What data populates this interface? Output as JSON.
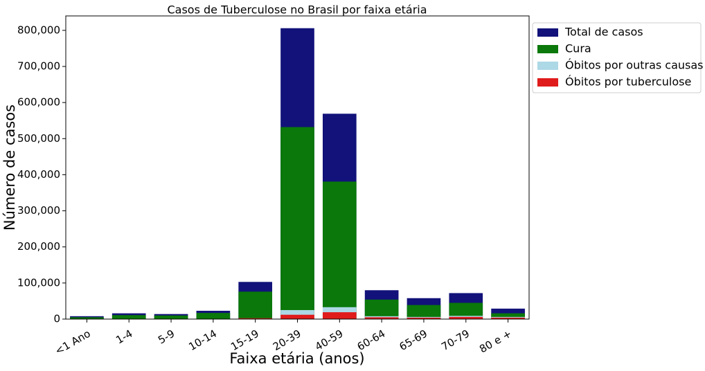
{
  "chart_data": {
    "type": "bar",
    "title": "Casos de Tuberculose no Brasil por faixa etária",
    "xlabel": "Faixa etária (anos)",
    "ylabel": "Número de casos",
    "categories": [
      "<1 Ano",
      "1-4",
      "5-9",
      "10-14",
      "15-19",
      "20-39",
      "40-59",
      "60-64",
      "65-69",
      "70-79",
      "80 e +"
    ],
    "series": [
      {
        "name": "Total de casos",
        "color": "#12127a",
        "values": [
          8000,
          16000,
          14000,
          23000,
          103000,
          806000,
          569000,
          80000,
          58000,
          72000,
          29000
        ]
      },
      {
        "name": "Cura",
        "color": "#0a780a",
        "values": [
          5000,
          11000,
          10000,
          17000,
          76000,
          532000,
          381000,
          54000,
          39000,
          45000,
          16000
        ]
      },
      {
        "name": "Óbitos por outras causas",
        "color": "#add8e6",
        "values": [
          200,
          300,
          300,
          500,
          2000,
          25000,
          33000,
          8000,
          6000,
          9000,
          6000
        ]
      },
      {
        "name": "Óbitos por tuberculose",
        "color": "#e01b1b",
        "values": [
          200,
          200,
          200,
          400,
          2500,
          12000,
          19000,
          5000,
          4000,
          6000,
          4000
        ]
      }
    ],
    "ylim": [
      0,
      840000
    ],
    "yticks": [
      0,
      {
        "value": 100000,
        "label": "100,000"
      },
      {
        "value": 200000,
        "label": "200,000"
      },
      {
        "value": 300000,
        "label": "300,000"
      },
      {
        "value": 400000,
        "label": "400,000"
      },
      {
        "value": 500000,
        "label": "500,000"
      },
      {
        "value": 600000,
        "label": "600,000"
      },
      {
        "value": 700000,
        "label": "700,000"
      },
      {
        "value": 800000,
        "label": "800,000"
      }
    ],
    "legend": "outside-upper-right",
    "overlap": true
  }
}
